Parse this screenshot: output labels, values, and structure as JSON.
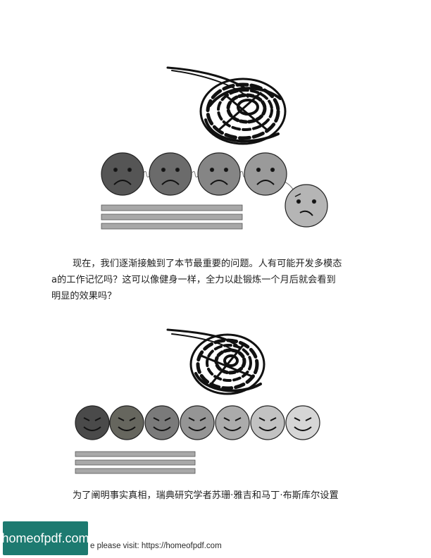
{
  "paragraphs": {
    "p1_line1": "现在，我们逐渐接触到了本节最重要的问题。人有可能开发多模态",
    "p1_line2": "a的工作记忆吗？这可以像健身一样，全力以赴锻炼一个月后就会看到",
    "p1_line3": "明显的效果吗？",
    "p2_line1": "为了阐明事实真相，瑞典研究学者苏珊·雅吉和马丁·布斯库尔设置"
  },
  "figure1": {
    "faces": [
      {
        "mood": "sad",
        "shade": "#555555"
      },
      {
        "mood": "sad",
        "shade": "#6b6b6b"
      },
      {
        "mood": "sad",
        "shade": "#858585"
      },
      {
        "mood": "sad",
        "shade": "#9a9a9a"
      },
      {
        "mood": "confused",
        "shade": "#b5b5b5"
      }
    ]
  },
  "figure2": {
    "faces": [
      {
        "mood": "happy",
        "shade": "#4a4a4a"
      },
      {
        "mood": "happy",
        "shade": "#66665e"
      },
      {
        "mood": "happy",
        "shade": "#7a7a7a"
      },
      {
        "mood": "happy",
        "shade": "#959595"
      },
      {
        "mood": "happy",
        "shade": "#ababab"
      },
      {
        "mood": "happy",
        "shade": "#c2c2c2"
      },
      {
        "mood": "happy",
        "shade": "#d6d6d6"
      }
    ]
  },
  "watermark": {
    "badge": "homeofpdf.com",
    "footer": "e please visit: https://homeofpdf.com"
  }
}
